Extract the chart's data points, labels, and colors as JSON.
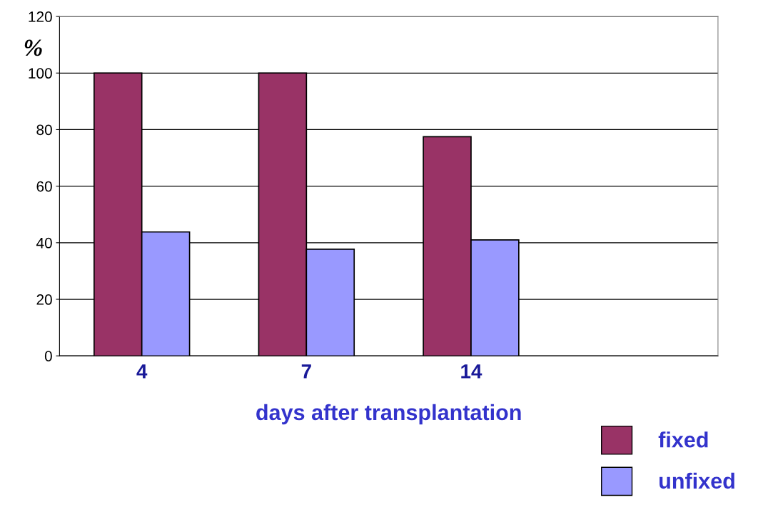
{
  "chart_data": {
    "type": "bar",
    "xlabel": "days after transplantation",
    "ylabel": "%",
    "categories": [
      "4",
      "7",
      "14",
      null
    ],
    "series": [
      {
        "name": "fixed",
        "color": "#993366",
        "values": [
          100,
          100,
          77.5,
          null
        ]
      },
      {
        "name": "unfixed",
        "color": "#9999ff",
        "values": [
          43.8,
          37.7,
          41.0,
          null
        ]
      }
    ],
    "ylim": [
      0,
      120
    ],
    "yticks": [
      0,
      20,
      40,
      60,
      80,
      100,
      120
    ],
    "grid": "y",
    "legend": "bottom right"
  }
}
